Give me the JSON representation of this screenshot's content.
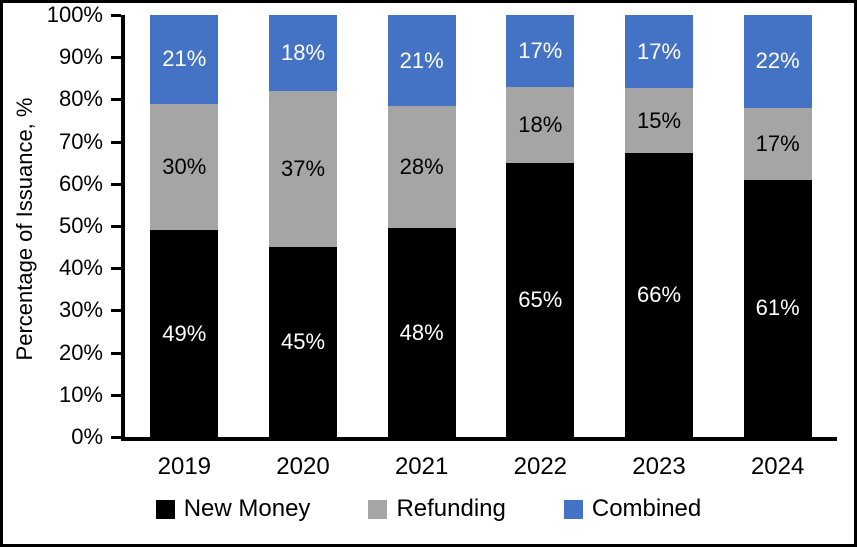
{
  "chart_data": {
    "type": "bar",
    "stacked": true,
    "percent_stacked": true,
    "title": "",
    "xlabel": "",
    "ylabel": "Percentage of Issuance, %",
    "ylim": [
      0,
      100
    ],
    "ytick_step": 10,
    "ytick_labels": [
      "0%",
      "10%",
      "20%",
      "30%",
      "40%",
      "50%",
      "60%",
      "70%",
      "80%",
      "90%",
      "100%"
    ],
    "grid": false,
    "legend_position": "bottom",
    "categories": [
      "2019",
      "2020",
      "2021",
      "2022",
      "2023",
      "2024"
    ],
    "series": [
      {
        "name": "New Money",
        "color": "#000000",
        "label_color": "#ffffff",
        "values": [
          49,
          45,
          48,
          65,
          66,
          61
        ],
        "data_labels": [
          "49%",
          "45%",
          "48%",
          "65%",
          "66%",
          "61%"
        ]
      },
      {
        "name": "Refunding",
        "color": "#A5A5A5",
        "label_color": "#000000",
        "values": [
          30,
          37,
          28,
          18,
          15,
          17
        ],
        "data_labels": [
          "30%",
          "37%",
          "28%",
          "18%",
          "15%",
          "17%"
        ]
      },
      {
        "name": "Combined",
        "color": "#4472C4",
        "label_color": "#ffffff",
        "values": [
          21,
          18,
          21,
          17,
          17,
          22
        ],
        "data_labels": [
          "21%",
          "18%",
          "21%",
          "17%",
          "17%",
          "22%"
        ]
      }
    ]
  },
  "styles": {
    "axis_color": "#000000",
    "background_color": "#ffffff",
    "border_color": "#000000"
  }
}
